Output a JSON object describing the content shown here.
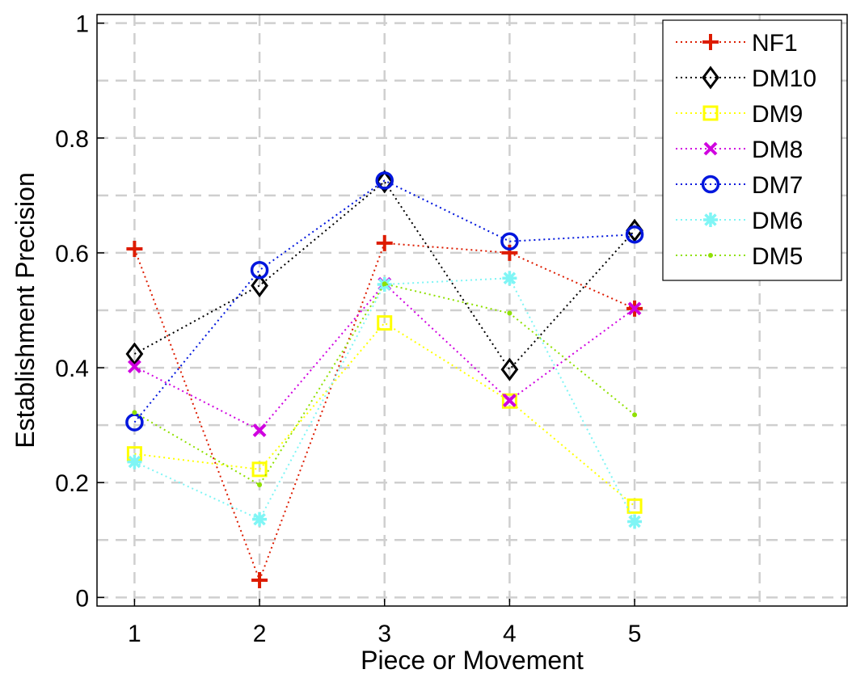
{
  "chart_data": {
    "type": "line",
    "title": "",
    "xlabel": "Piece or Movement",
    "ylabel": "Establishment Precision",
    "x": [
      1,
      2,
      3,
      4,
      5
    ],
    "xticks": [
      "1",
      "2",
      "3",
      "4",
      "5"
    ],
    "xlim": [
      0.7,
      6.7
    ],
    "ylim": [
      -0.015,
      1.015
    ],
    "yticks": [
      "0",
      "0.2",
      "0.4",
      "0.6",
      "0.8",
      "1"
    ],
    "grid": true,
    "legend_position": "top-right",
    "series": [
      {
        "name": "NF1",
        "color": "#dd1c00",
        "marker": "plus",
        "values": [
          0.607,
          0.03,
          0.617,
          0.6,
          0.503
        ]
      },
      {
        "name": "DM10",
        "color": "#000000",
        "marker": "diamond",
        "values": [
          0.424,
          0.543,
          0.724,
          0.397,
          0.639
        ]
      },
      {
        "name": "DM9",
        "color": "#ffff00",
        "marker": "square",
        "values": [
          0.25,
          0.223,
          0.478,
          0.342,
          0.159
        ]
      },
      {
        "name": "DM8",
        "color": "#d000e0",
        "marker": "x",
        "values": [
          0.402,
          0.291,
          0.546,
          0.343,
          0.503
        ]
      },
      {
        "name": "DM7",
        "color": "#0016dd",
        "marker": "circle",
        "values": [
          0.305,
          0.57,
          0.726,
          0.62,
          0.632
        ]
      },
      {
        "name": "DM6",
        "color": "#7ff5f5",
        "marker": "asterisk",
        "values": [
          0.236,
          0.136,
          0.545,
          0.556,
          0.132
        ]
      },
      {
        "name": "DM5",
        "color": "#8fe000",
        "marker": "dot",
        "values": [
          0.322,
          0.196,
          0.546,
          0.495,
          0.318
        ]
      }
    ]
  }
}
